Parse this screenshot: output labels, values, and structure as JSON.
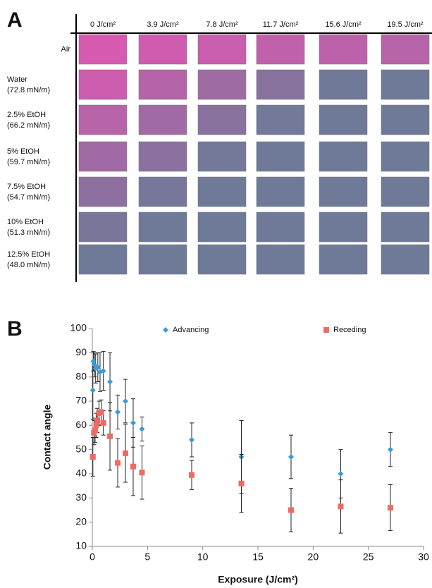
{
  "panel_a": {
    "label": "A",
    "columns": [
      "0 J/cm²",
      "3.9 J/cm²",
      "7.8 J/cm²",
      "11.7 J/cm²",
      "15.6 J/cm²",
      "19.5 J/cm²"
    ],
    "rows": [
      {
        "name": "Air"
      },
      {
        "name": "Water",
        "tension": "(72.8 mN/m)"
      },
      {
        "name": "2.5% EtOH",
        "tension": "(66.2 mN/m)"
      },
      {
        "name": "5% EtOH",
        "tension": "(59.7 mN/m)"
      },
      {
        "name": "7.5% EtOH",
        "tension": "(54.7 mN/m)"
      },
      {
        "name": "10% EtOH",
        "tension": "(51.3 mN/m)"
      },
      {
        "name": "12.5% EtOH",
        "tension": "(48.0 mN/m)"
      }
    ]
  },
  "chart_data": {
    "type": "scatter",
    "panel_label": "B",
    "x_label": "Exposure (J/cm²)",
    "y_label": "Contact angle",
    "xlim": [
      0,
      30
    ],
    "xticks": [
      0,
      5,
      10,
      15,
      20,
      25,
      30
    ],
    "ylim": [
      10,
      100
    ],
    "yticks": [
      10,
      20,
      30,
      40,
      50,
      60,
      70,
      80,
      90,
      100
    ],
    "legend": "top",
    "series": [
      {
        "name": "Advancing",
        "color": "#3a9ad9",
        "marker": "diamond",
        "x": [
          0.05,
          0.1,
          0.2,
          0.3,
          0.5,
          0.7,
          1.0,
          1.6,
          2.3,
          3.0,
          3.7,
          4.5,
          9,
          13.5,
          18,
          22.5,
          27
        ],
        "values": [
          74.5,
          86.5,
          85,
          83.5,
          84,
          82,
          82.5,
          78,
          65.5,
          70,
          61,
          58.5,
          54,
          47,
          47,
          40,
          50
        ],
        "errors": [
          12,
          4,
          5,
          6,
          6,
          8,
          8,
          12,
          7,
          9,
          10,
          5,
          7,
          15,
          9,
          10,
          7
        ]
      },
      {
        "name": "Receding",
        "color": "#f06a64",
        "marker": "square",
        "x": [
          0.05,
          0.15,
          0.25,
          0.35,
          0.45,
          0.6,
          0.8,
          1.0,
          1.6,
          2.3,
          3.0,
          3.7,
          4.5,
          9,
          13.5,
          18,
          22.5,
          27
        ],
        "values": [
          47,
          57,
          58,
          60,
          62,
          65,
          65.5,
          61,
          55.5,
          44.5,
          48.5,
          43,
          40.5,
          39.5,
          36,
          25,
          26.5,
          26
        ],
        "errors": [
          8,
          5,
          5,
          5,
          5,
          5,
          5,
          5,
          14,
          10,
          12,
          12,
          11,
          6,
          12,
          9,
          11,
          9.5
        ]
      }
    ]
  }
}
